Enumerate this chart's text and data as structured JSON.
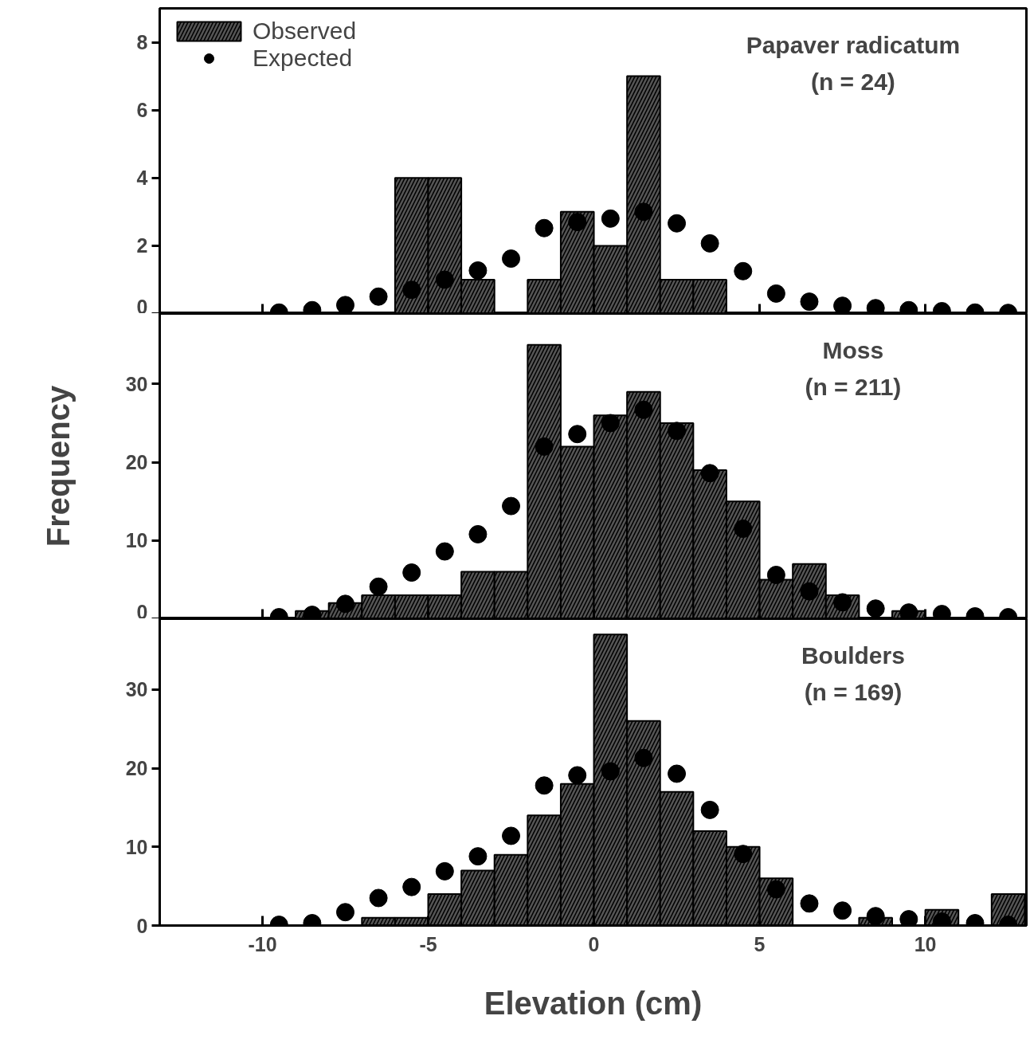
{
  "chart_data": [
    {
      "type": "histogram",
      "title": "Papaver radicatum",
      "subtitle": "(n = 24)",
      "bins": [
        -6,
        -5,
        -4,
        -3,
        -2,
        -1,
        0,
        1,
        2,
        3,
        4
      ],
      "xlim": [
        -13.1,
        13.05
      ],
      "xticks": [
        {
          "value": -10,
          "label": null
        },
        {
          "value": -5,
          "label": null
        },
        {
          "value": 0,
          "label": null
        },
        {
          "value": 5,
          "label": null
        },
        {
          "value": 10,
          "label": null
        }
      ],
      "ylim": [
        0,
        9
      ],
      "yticks": [
        0,
        2,
        4,
        6,
        8
      ],
      "tick_labels": "y",
      "legend": "top left",
      "series": [
        {
          "name": "Observed",
          "color": "#555555",
          "values": [
            4,
            4,
            1,
            0,
            1,
            3,
            2,
            7,
            1,
            1
          ]
        },
        {
          "name": "Expected",
          "type": "scatter",
          "color": "#000000",
          "x": [
            -9.5,
            -8.5,
            -7.5,
            -6.5,
            -5.5,
            -4.5,
            -3.5,
            -2.5,
            -1.5,
            -0.5,
            0.5,
            1.5,
            2.5,
            3.5,
            4.5,
            5.5,
            6.5,
            7.5,
            8.5,
            9.5,
            10.5,
            11.5,
            12.5
          ],
          "values": [
            0.03,
            0.1,
            0.25,
            0.5,
            0.7,
            1.0,
            1.27,
            1.62,
            2.52,
            2.7,
            2.8,
            3.0,
            2.66,
            2.07,
            1.25,
            0.59,
            0.35,
            0.23,
            0.16,
            0.1,
            0.07,
            0.03,
            0.02
          ]
        }
      ]
    },
    {
      "type": "histogram",
      "title": "Moss",
      "subtitle": "(n = 211)",
      "ylabel": "Frequency",
      "bins": [
        -9,
        -8,
        -7,
        -6,
        -5,
        -4,
        -3,
        -2,
        -1,
        0,
        1,
        2,
        3,
        4,
        5,
        6,
        7,
        8,
        9,
        10
      ],
      "xlim": [
        -13.1,
        13.05
      ],
      "xticks": [
        {
          "value": -10,
          "label": null
        },
        {
          "value": -5,
          "label": null
        },
        {
          "value": 0,
          "label": null
        },
        {
          "value": 5,
          "label": null
        },
        {
          "value": 10,
          "label": null
        }
      ],
      "ylim": [
        0,
        39
      ],
      "yticks": [
        0,
        10,
        20,
        30
      ],
      "tick_labels": "y",
      "series": [
        {
          "color": "#555555",
          "values": [
            1,
            2,
            3,
            3,
            3,
            6,
            6,
            35,
            22,
            26,
            29,
            25,
            19,
            15,
            5,
            7,
            3,
            0,
            1
          ]
        },
        {
          "type": "scatter",
          "color": "#000000",
          "x": [
            -9.5,
            -8.5,
            -7.5,
            -6.5,
            -5.5,
            -4.5,
            -3.5,
            -2.5,
            -1.5,
            -0.5,
            0.5,
            1.5,
            2.5,
            3.5,
            4.5,
            5.5,
            6.5,
            7.5,
            8.5,
            9.5,
            10.5,
            11.5,
            12.5
          ],
          "values": [
            0.2,
            0.5,
            1.9,
            4.1,
            5.9,
            8.6,
            10.8,
            14.4,
            22,
            23.6,
            25,
            26.7,
            24,
            18.6,
            11.5,
            5.6,
            3.5,
            2.1,
            1.3,
            0.8,
            0.6,
            0.3,
            0.2
          ]
        }
      ]
    },
    {
      "type": "histogram",
      "title": "Boulders",
      "subtitle": "(n = 169)",
      "xlabel": "Elevation (cm)",
      "bins": [
        -7,
        -6,
        -5,
        -4,
        -3,
        -2,
        -1,
        0,
        1,
        2,
        3,
        4,
        5,
        6,
        7,
        8,
        9,
        10,
        11,
        12,
        13
      ],
      "xlim": [
        -13.1,
        13.05
      ],
      "xticks": [
        -10,
        -5,
        0,
        5,
        10
      ],
      "ylim": [
        0,
        39
      ],
      "yticks": [
        0,
        10,
        20,
        30
      ],
      "series": [
        {
          "color": "#555555",
          "values": [
            1,
            1,
            4,
            7,
            9,
            14,
            18,
            37,
            26,
            17,
            12,
            10,
            6,
            0,
            0,
            1,
            0,
            2,
            0,
            4
          ]
        },
        {
          "type": "scatter",
          "color": "#000000",
          "x": [
            -9.5,
            -8.5,
            -7.5,
            -6.5,
            -5.5,
            -4.5,
            -3.5,
            -2.5,
            -1.5,
            -0.5,
            0.5,
            1.5,
            2.5,
            3.5,
            4.5,
            5.5,
            6.5,
            7.5,
            8.5,
            9.5,
            10.5,
            11.5,
            12.5
          ],
          "values": [
            0.1,
            0.3,
            1.7,
            3.5,
            4.9,
            6.9,
            8.8,
            11.4,
            17.8,
            19.1,
            19.6,
            21.3,
            19.3,
            14.7,
            9.1,
            4.6,
            2.8,
            1.9,
            1.2,
            0.8,
            0.5,
            0.3,
            0.1
          ]
        }
      ]
    }
  ]
}
